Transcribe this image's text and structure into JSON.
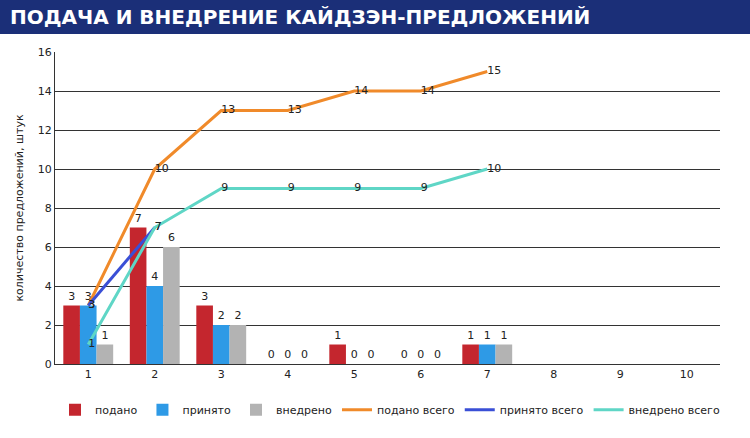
{
  "chart_data": {
    "type": "bar",
    "title": "ПОДАЧА И ВНЕДРЕНИЕ КАЙДЗЭН-ПРЕДЛОЖЕНИЙ",
    "y_label": "количество предложений, штук",
    "categories": [
      "1",
      "2",
      "3",
      "4",
      "5",
      "6",
      "7",
      "8",
      "9",
      "10"
    ],
    "series": [
      {
        "name": "подано",
        "type": "bar",
        "color": "#c4262e",
        "values": [
          3,
          7,
          3,
          0,
          1,
          0,
          1,
          null,
          null,
          null
        ]
      },
      {
        "name": "принято",
        "type": "bar",
        "color": "#2e9ae6",
        "values": [
          3,
          4,
          2,
          0,
          0,
          0,
          1,
          null,
          null,
          null
        ]
      },
      {
        "name": "внедрено",
        "type": "bar",
        "color": "#b3b3b3",
        "values": [
          1,
          6,
          2,
          0,
          0,
          0,
          1,
          null,
          null,
          null
        ]
      },
      {
        "name": "подано всего",
        "type": "line",
        "color": "#f08a2a",
        "values": [
          3,
          10,
          13,
          13,
          14,
          14,
          15,
          null,
          null,
          null
        ]
      },
      {
        "name": "принято всего",
        "type": "line",
        "color": "#3a4fd6",
        "values": [
          3,
          7,
          null,
          null,
          null,
          null,
          null,
          null,
          null,
          null
        ]
      },
      {
        "name": "внедрено всего",
        "type": "line",
        "color": "#5fd6c6",
        "values": [
          1,
          7,
          9,
          9,
          9,
          9,
          10,
          null,
          null,
          null
        ]
      }
    ],
    "ylim": [
      0,
      16
    ],
    "yticks": [
      0,
      2,
      4,
      6,
      8,
      10,
      12,
      14,
      16
    ],
    "grid": true,
    "data_labels": true,
    "legend": "bottom"
  }
}
